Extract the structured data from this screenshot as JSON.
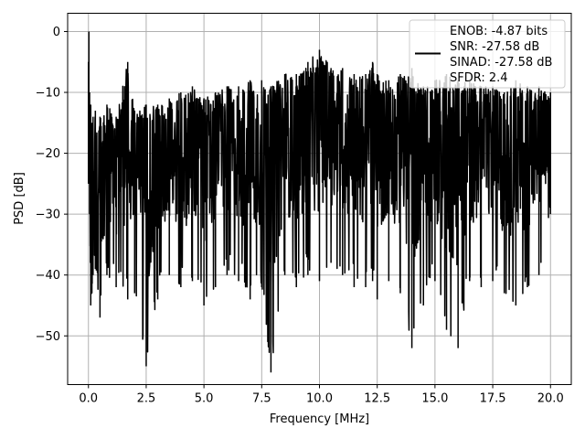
{
  "chart_data": {
    "type": "line",
    "title": "",
    "xlabel": "Frequency [MHz]",
    "ylabel": "PSD [dB]",
    "xlim": [
      -0.9,
      20.9
    ],
    "ylim": [
      -58,
      3
    ],
    "x_ticks": [
      0,
      2.5,
      5,
      7.5,
      10,
      12.5,
      15,
      17.5,
      20
    ],
    "x_tick_labels": [
      "0.0",
      "2.5",
      "5.0",
      "7.5",
      "10.0",
      "12.5",
      "15.0",
      "17.5",
      "20.0"
    ],
    "y_ticks": [
      0,
      -10,
      -20,
      -30,
      -40,
      -50
    ],
    "y_tick_labels": [
      "0",
      "−10",
      "−20",
      "−30",
      "−40",
      "−50"
    ],
    "grid": true,
    "legend_placement": "top-right",
    "legend_lines": [
      "ENOB: -4.87 bits",
      "SNR: -27.58 dB",
      "SINAD: -27.58 dB",
      "SFDR: 2.4"
    ],
    "series": [
      {
        "color": "#000000",
        "x": [
          0.0,
          0.02,
          0.05,
          0.08,
          0.1,
          0.15,
          0.2,
          0.3,
          0.5,
          0.8,
          1.2,
          1.7,
          2.0,
          2.5,
          3.0,
          3.5,
          4.0,
          4.5,
          5.0,
          5.5,
          6.0,
          6.5,
          7.0,
          7.5,
          7.9,
          8.5,
          9.0,
          9.5,
          10.0,
          10.5,
          11.0,
          11.5,
          12.0,
          12.3,
          12.5,
          13.0,
          13.5,
          14.0,
          14.5,
          15.0,
          15.5,
          16.0,
          16.5,
          17.0,
          17.5,
          18.0,
          18.5,
          19.0,
          19.5,
          20.0
        ],
        "upper": [
          -5,
          0,
          -10,
          -14,
          -12,
          -15,
          -14,
          -13,
          -14,
          -12,
          -14,
          -5,
          -13,
          -12,
          -12,
          -11,
          -10,
          -9,
          -11,
          -10,
          -9,
          -9,
          -8,
          -8,
          -9,
          -7,
          -7,
          -5,
          -3,
          -6,
          -6,
          -7,
          -7,
          -5,
          -7,
          -8,
          -7,
          -6,
          -9,
          -8,
          -7,
          -8,
          -8,
          -9,
          -9,
          -10,
          -8,
          -9,
          -9,
          -10
        ],
        "lower": [
          -25,
          -20,
          -30,
          -38,
          -45,
          -43,
          -40,
          -39,
          -47,
          -40,
          -42,
          -44,
          -43,
          -55,
          -44,
          -40,
          -42,
          -41,
          -45,
          -42,
          -40,
          -41,
          -44,
          -42,
          -56,
          -40,
          -42,
          -40,
          -41,
          -38,
          -40,
          -42,
          -42,
          -41,
          -44,
          -41,
          -43,
          -52,
          -45,
          -41,
          -49,
          -52,
          -41,
          -42,
          -41,
          -43,
          -45,
          -42,
          -40,
          -30
        ]
      }
    ]
  }
}
